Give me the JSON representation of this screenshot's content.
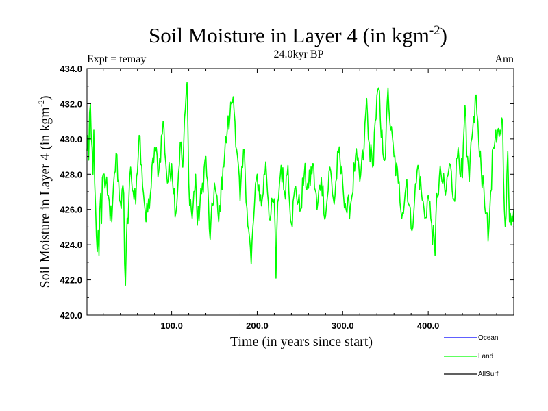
{
  "chart_data": {
    "type": "line",
    "title": "Soil Moisture in Layer 4 (in kgm",
    "title_sup": "-2",
    "title_close": ")",
    "left_label": "Expt = temay",
    "center_label": "24.0kyr BP",
    "right_label": "Ann",
    "xlabel": "Time (in years since start)",
    "ylabel": "Soil Moisture in Layer 4 (in kgm",
    "ylabel_sup": "-2",
    "ylabel_close": ")",
    "xlim": [
      1,
      500
    ],
    "ylim": [
      420.0,
      434.0
    ],
    "xticks": [
      100,
      200,
      300,
      400
    ],
    "xtick_labels": [
      "100.0",
      "200.0",
      "300.0",
      "400.0"
    ],
    "yticks": [
      420,
      422,
      424,
      426,
      428,
      430,
      432,
      434
    ],
    "ytick_labels": [
      "420.0",
      "422.0",
      "424.0",
      "426.0",
      "428.0",
      "430.0",
      "432.0",
      "434.0"
    ],
    "legend": [
      {
        "name": "Ocean",
        "color": "#0000ff"
      },
      {
        "name": "Land",
        "color": "#00ff00"
      },
      {
        "name": "AllSurf",
        "color": "#000000"
      }
    ],
    "series": [
      {
        "name": "Land",
        "color": "#00ff00",
        "x": [
          1,
          500
        ],
        "anchors": [
          [
            1,
            429.3
          ],
          [
            2,
            430.2
          ],
          [
            3,
            428.8
          ],
          [
            4,
            431.5
          ],
          [
            5,
            432.0
          ],
          [
            6,
            430.1
          ],
          [
            7,
            429.5
          ],
          [
            8,
            428.0
          ],
          [
            9,
            430.5
          ],
          [
            10,
            427.5
          ],
          [
            11,
            426.2
          ],
          [
            12,
            424.5
          ],
          [
            13,
            423.6
          ],
          [
            14,
            424.8
          ],
          [
            15,
            423.4
          ],
          [
            16,
            426.0
          ],
          [
            17,
            426.9
          ],
          [
            18,
            425.2
          ],
          [
            19,
            427.8
          ],
          [
            20,
            428.0
          ],
          [
            25,
            426.8
          ],
          [
            30,
            425.3
          ],
          [
            35,
            429.2
          ],
          [
            40,
            426.4
          ],
          [
            44,
            426.9
          ],
          [
            45,
            422.9
          ],
          [
            46,
            421.7
          ],
          [
            47,
            424.1
          ],
          [
            52,
            428.4
          ],
          [
            55,
            427.0
          ],
          [
            58,
            426.3
          ],
          [
            62,
            430.2
          ],
          [
            65,
            428.5
          ],
          [
            70,
            425.3
          ],
          [
            75,
            426.8
          ],
          [
            80,
            429.5
          ],
          [
            85,
            428.2
          ],
          [
            90,
            431.0
          ],
          [
            95,
            427.5
          ],
          [
            100,
            428.6
          ],
          [
            105,
            425.8
          ],
          [
            110,
            429.8
          ],
          [
            113,
            428.4
          ],
          [
            116,
            431.7
          ],
          [
            118,
            433.2
          ],
          [
            120,
            427.5
          ],
          [
            124,
            425.5
          ],
          [
            128,
            428.0
          ],
          [
            130,
            425.1
          ],
          [
            135,
            426.9
          ],
          [
            140,
            429.0
          ],
          [
            145,
            424.3
          ],
          [
            150,
            427.5
          ],
          [
            155,
            425.3
          ],
          [
            160,
            428.4
          ],
          [
            165,
            430.5
          ],
          [
            168,
            431.2
          ],
          [
            170,
            432.0
          ],
          [
            172,
            432.4
          ],
          [
            174,
            431.0
          ],
          [
            177,
            429.0
          ],
          [
            180,
            426.5
          ],
          [
            185,
            429.4
          ],
          [
            188,
            426.1
          ],
          [
            193,
            422.9
          ],
          [
            195,
            425.0
          ],
          [
            200,
            428.0
          ],
          [
            205,
            426.2
          ],
          [
            210,
            428.7
          ],
          [
            215,
            425.4
          ],
          [
            220,
            426.6
          ],
          [
            222,
            422.1
          ],
          [
            224,
            426.4
          ],
          [
            228,
            428.5
          ],
          [
            232,
            427.0
          ],
          [
            236,
            428.5
          ],
          [
            240,
            425.2
          ],
          [
            245,
            427.3
          ],
          [
            250,
            425.9
          ],
          [
            255,
            428.0
          ],
          [
            260,
            427.2
          ],
          [
            265,
            428.6
          ],
          [
            270,
            426.0
          ],
          [
            275,
            427.8
          ],
          [
            280,
            425.6
          ],
          [
            285,
            428.4
          ],
          [
            290,
            426.3
          ],
          [
            295,
            429.2
          ],
          [
            300,
            427.5
          ],
          [
            305,
            425.8
          ],
          [
            310,
            426.5
          ],
          [
            315,
            429.0
          ],
          [
            320,
            427.6
          ],
          [
            325,
            429.5
          ],
          [
            328,
            432.3
          ],
          [
            330,
            430.0
          ],
          [
            335,
            428.4
          ],
          [
            338,
            431.0
          ],
          [
            342,
            432.9
          ],
          [
            345,
            430.1
          ],
          [
            350,
            429.0
          ],
          [
            353,
            432.9
          ],
          [
            356,
            430.5
          ],
          [
            360,
            429.0
          ],
          [
            365,
            427.5
          ],
          [
            370,
            425.8
          ],
          [
            375,
            427.7
          ],
          [
            380,
            424.9
          ],
          [
            384,
            426.5
          ],
          [
            388,
            428.5
          ],
          [
            392,
            427.0
          ],
          [
            396,
            425.5
          ],
          [
            400,
            426.8
          ],
          [
            404,
            425.2
          ],
          [
            408,
            423.4
          ],
          [
            410,
            426.9
          ],
          [
            415,
            428.0
          ],
          [
            420,
            426.8
          ],
          [
            425,
            428.6
          ],
          [
            430,
            426.6
          ],
          [
            435,
            429.5
          ],
          [
            440,
            427.8
          ],
          [
            443,
            431.9
          ],
          [
            445,
            429.0
          ],
          [
            448,
            427.6
          ],
          [
            452,
            430.5
          ],
          [
            456,
            432.5
          ],
          [
            460,
            429.0
          ],
          [
            465,
            427.3
          ],
          [
            468,
            425.8
          ],
          [
            470,
            424.2
          ],
          [
            473,
            427.0
          ],
          [
            476,
            429.5
          ],
          [
            480,
            429.8
          ],
          [
            484,
            430.5
          ],
          [
            487,
            431.0
          ],
          [
            489,
            426.0
          ],
          [
            491,
            425.6
          ],
          [
            493,
            429.3
          ],
          [
            495,
            425.3
          ],
          [
            497,
            425.1
          ],
          [
            500,
            426.0
          ]
        ]
      }
    ]
  }
}
